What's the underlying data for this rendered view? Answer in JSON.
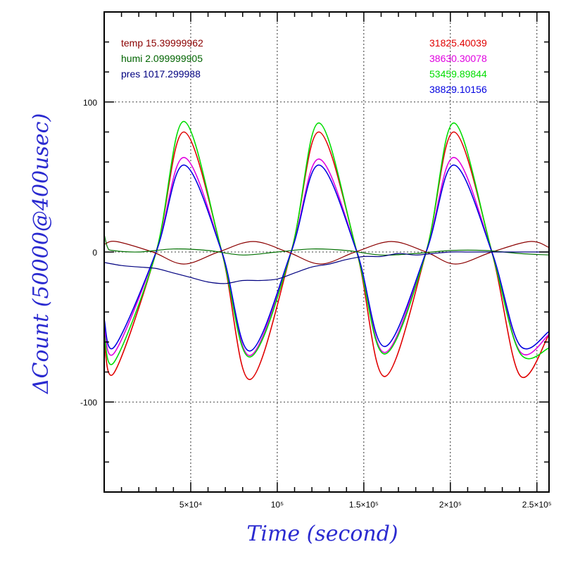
{
  "chart_data": {
    "type": "line",
    "xlabel": "Time (second)",
    "ylabel": "ΔCount (50000@400usec)",
    "xlim": [
      0,
      257000
    ],
    "ylim": [
      -160,
      160
    ],
    "xticks": [
      {
        "value": 50000,
        "label": "5×10⁴"
      },
      {
        "value": 100000,
        "label": "10⁵"
      },
      {
        "value": 150000,
        "label": "1.5×10⁵"
      },
      {
        "value": 200000,
        "label": "2×10⁵"
      },
      {
        "value": 250000,
        "label": "2.5×10⁵"
      }
    ],
    "yticks": [
      {
        "value": 100,
        "label": "100"
      },
      {
        "value": 0,
        "label": "0"
      },
      {
        "value": -100,
        "label": "-100"
      }
    ],
    "grid": true,
    "legend_left": [
      {
        "text": "temp 15.39999962",
        "color": "#8b0000"
      },
      {
        "text": "humi 2.099999905",
        "color": "#006400"
      },
      {
        "text": "pres 1017.299988",
        "color": "#000080"
      }
    ],
    "legend_right": [
      {
        "text": "31825.40039",
        "color": "#e00000"
      },
      {
        "text": "38630.30078",
        "color": "#e000e0"
      },
      {
        "text": "53459.89844",
        "color": "#00dd00"
      },
      {
        "text": "38829.10156",
        "color": "#0000e0"
      }
    ],
    "series": [
      {
        "color": "#e00000",
        "x": [
          0,
          6000,
          30000,
          46000,
          68000,
          84000,
          108000,
          124000,
          146000,
          162000,
          186000,
          202000,
          224000,
          240000,
          257000
        ],
        "y": [
          -60,
          -80,
          0,
          80,
          0,
          -85,
          0,
          80,
          0,
          -83,
          0,
          80,
          0,
          -82,
          -55
        ]
      },
      {
        "color": "#e000e0",
        "x": [
          0,
          6000,
          30000,
          46000,
          68000,
          84000,
          108000,
          124000,
          146000,
          162000,
          186000,
          202000,
          224000,
          240000,
          257000
        ],
        "y": [
          -50,
          -67,
          0,
          63,
          0,
          -69,
          0,
          62,
          0,
          -67,
          0,
          63,
          0,
          -66,
          -55
        ]
      },
      {
        "color": "#00dd00",
        "x": [
          0,
          6000,
          30000,
          46000,
          68000,
          84000,
          108000,
          124000,
          146000,
          162000,
          186000,
          202000,
          224000,
          240000,
          257000
        ],
        "y": [
          -55,
          -73,
          0,
          87,
          0,
          -70,
          0,
          86,
          0,
          -68,
          0,
          86,
          0,
          -67,
          -64
        ]
      },
      {
        "color": "#0000e0",
        "x": [
          0,
          6000,
          30000,
          46000,
          68000,
          84000,
          108000,
          124000,
          146000,
          162000,
          186000,
          202000,
          224000,
          240000,
          257000
        ],
        "y": [
          -45,
          -63,
          0,
          58,
          0,
          -66,
          0,
          58,
          0,
          -63,
          0,
          58,
          0,
          -62,
          -53
        ]
      },
      {
        "color": "#8b0000",
        "x": [
          0,
          7000,
          28000,
          46000,
          66000,
          86000,
          106000,
          125000,
          145000,
          166000,
          186000,
          203000,
          224000,
          246000,
          257000
        ],
        "y": [
          5,
          7,
          0,
          -8,
          0,
          7,
          0,
          -8,
          0,
          7,
          0,
          -8,
          0,
          7,
          3
        ]
      },
      {
        "color": "#007000",
        "x": [
          0,
          2000,
          5000,
          20000,
          40000,
          60000,
          80000,
          100000,
          120000,
          140000,
          160000,
          180000,
          200000,
          220000,
          240000,
          257000
        ],
        "y": [
          12,
          3,
          1,
          0,
          2,
          1,
          -2,
          0,
          2,
          1,
          -2,
          -1,
          1,
          1,
          -1,
          -2
        ]
      },
      {
        "color": "#000080",
        "x": [
          0,
          10000,
          20000,
          30000,
          40000,
          50000,
          60000,
          70000,
          80000,
          90000,
          100000,
          110000,
          120000,
          130000,
          140000,
          150000,
          160000,
          170000,
          180000,
          190000,
          200000,
          210000,
          220000,
          230000,
          240000,
          257000
        ],
        "y": [
          -7,
          -9,
          -10,
          -11,
          -14,
          -17,
          -20,
          -21,
          -19,
          -19,
          -18,
          -14,
          -10,
          -8,
          -5,
          -3,
          -3,
          -1,
          -2,
          -1,
          0,
          0,
          0,
          0,
          0,
          0
        ]
      }
    ]
  }
}
